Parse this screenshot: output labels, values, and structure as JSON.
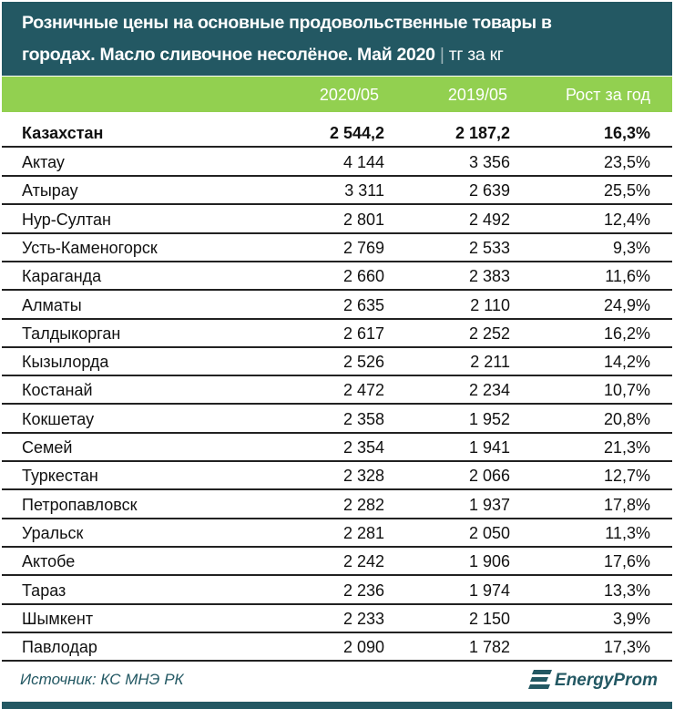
{
  "title": {
    "line1": "Розничные цены на основные продовольственные товары в",
    "line2": "городах. Масло сливочное несолёное. Май 2020",
    "separator": "|",
    "unit": "тг за кг"
  },
  "columns": [
    "2020/05",
    "2019/05",
    "Рост за год"
  ],
  "total": {
    "name": "Казахстан",
    "v2020": "2 544,2",
    "v2019": "2 187,2",
    "growth": "16,3%"
  },
  "rows": [
    {
      "name": "Актау",
      "v2020": "4 144",
      "v2019": "3 356",
      "growth": "23,5%"
    },
    {
      "name": "Атырау",
      "v2020": "3 311",
      "v2019": "2 639",
      "growth": "25,5%"
    },
    {
      "name": "Нур-Султан",
      "v2020": "2 801",
      "v2019": "2 492",
      "growth": "12,4%"
    },
    {
      "name": "Усть-Каменогорск",
      "v2020": "2 769",
      "v2019": "2 533",
      "growth": "9,3%"
    },
    {
      "name": "Караганда",
      "v2020": "2 660",
      "v2019": "2 383",
      "growth": "11,6%"
    },
    {
      "name": "Алматы",
      "v2020": "2 635",
      "v2019": "2 110",
      "growth": "24,9%"
    },
    {
      "name": "Талдыкорган",
      "v2020": "2 617",
      "v2019": "2 252",
      "growth": "16,2%"
    },
    {
      "name": "Кызылорда",
      "v2020": "2 526",
      "v2019": "2 211",
      "growth": "14,2%"
    },
    {
      "name": "Костанай",
      "v2020": "2 472",
      "v2019": "2 234",
      "growth": "10,7%"
    },
    {
      "name": "Кокшетау",
      "v2020": "2 358",
      "v2019": "1 952",
      "growth": "20,8%"
    },
    {
      "name": "Семей",
      "v2020": "2 354",
      "v2019": "1 941",
      "growth": "21,3%"
    },
    {
      "name": "Туркестан",
      "v2020": "2 328",
      "v2019": "2 066",
      "growth": "12,7%"
    },
    {
      "name": "Петропавловск",
      "v2020": "2 282",
      "v2019": "1 937",
      "growth": "17,8%"
    },
    {
      "name": "Уральск",
      "v2020": "2 281",
      "v2019": "2 050",
      "growth": "11,3%"
    },
    {
      "name": "Актобе",
      "v2020": "2 242",
      "v2019": "1 906",
      "growth": "17,6%"
    },
    {
      "name": "Тараз",
      "v2020": "2 236",
      "v2019": "1 974",
      "growth": "13,3%"
    },
    {
      "name": "Шымкент",
      "v2020": "2 233",
      "v2019": "2 150",
      "growth": "3,9%"
    },
    {
      "name": "Павлодар",
      "v2020": "2 090",
      "v2019": "1 782",
      "growth": "17,3%"
    }
  ],
  "footer": {
    "source": "Источник: КС МНЭ РК",
    "logo": "EnergyProm"
  },
  "colors": {
    "header": "#235863",
    "accent": "#92d050"
  }
}
